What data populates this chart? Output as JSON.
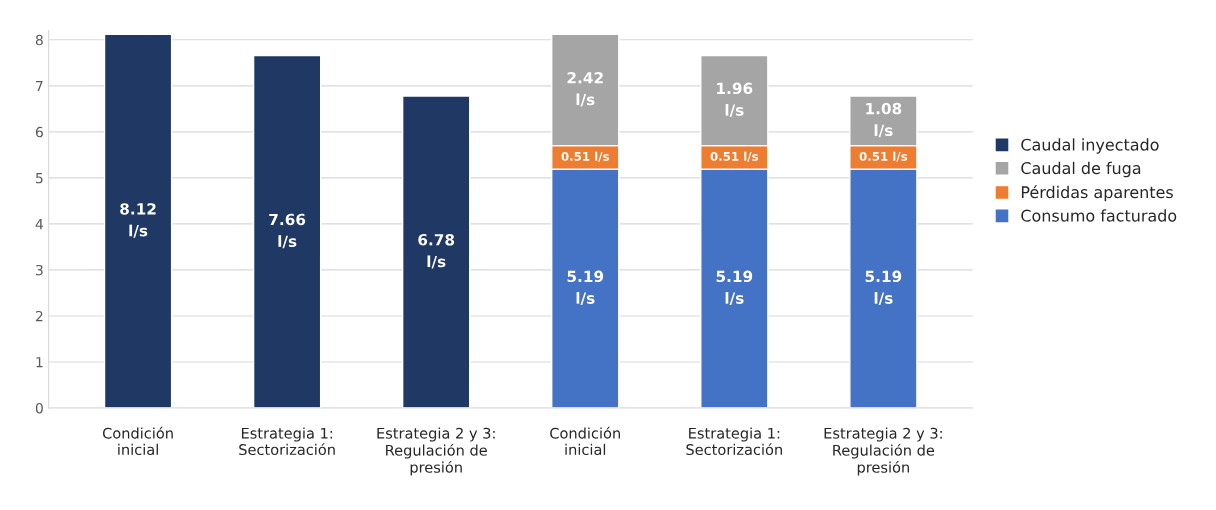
{
  "chart_data": {
    "type": "bar",
    "stacked": true,
    "categories": [
      "Condición\ninicial",
      "Estrategia 1:\nSectorización",
      "Estrategia 2 y 3:\nRegulación de\npresión",
      "Condición\ninicial",
      "Estrategia 1:\nSectorización",
      "Estrategia 2 y 3:\nRegulación de\npresión"
    ],
    "series": [
      {
        "name": "Consumo facturado",
        "color": "#4472c4",
        "values": [
          null,
          null,
          null,
          5.19,
          5.19,
          5.19
        ],
        "value_labels": [
          null,
          null,
          null,
          "5.19\nl/s",
          "5.19\nl/s",
          "5.19\nl/s"
        ]
      },
      {
        "name": "Pérdidas aparentes",
        "color": "#ed7d31",
        "values": [
          null,
          null,
          null,
          0.51,
          0.51,
          0.51
        ],
        "value_labels": [
          null,
          null,
          null,
          "0.51 l/s",
          "0.51 l/s",
          "0.51 l/s"
        ]
      },
      {
        "name": "Caudal de fuga",
        "color": "#a5a5a5",
        "values": [
          null,
          null,
          null,
          2.42,
          1.96,
          1.08
        ],
        "value_labels": [
          null,
          null,
          null,
          "2.42\nl/s",
          "1.96\nl/s",
          "1.08\nl/s"
        ]
      },
      {
        "name": "Caudal inyectado",
        "color": "#1f3864",
        "values": [
          8.12,
          7.66,
          6.78,
          null,
          null,
          null
        ],
        "value_labels": [
          "8.12\nl/s",
          "7.66\nl/s",
          "6.78\nl/s",
          null,
          null,
          null
        ]
      }
    ],
    "ylim": [
      0,
      8.2
    ],
    "yticks": [
      0,
      1,
      2,
      3,
      4,
      5,
      6,
      7,
      8
    ],
    "grid": "y",
    "legend": "right"
  }
}
